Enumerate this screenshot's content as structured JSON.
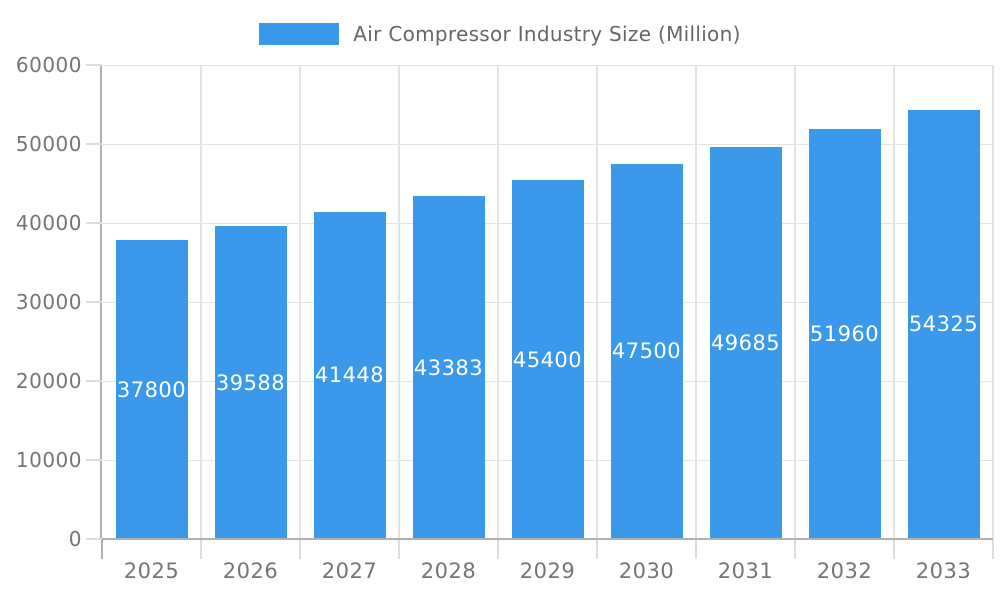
{
  "legend": {
    "label": "Air Compressor Industry Size (Million)"
  },
  "chart_data": {
    "type": "bar",
    "title": "Air Compressor Industry Size (Million)",
    "categories": [
      "2025",
      "2026",
      "2027",
      "2028",
      "2029",
      "2030",
      "2031",
      "2032",
      "2033"
    ],
    "values": [
      37800,
      39588,
      41448,
      43383,
      45400,
      47500,
      49685,
      51960,
      54325
    ],
    "xlabel": "",
    "ylabel": "",
    "ylim": [
      0,
      60000
    ],
    "yticks": [
      0,
      10000,
      20000,
      30000,
      40000,
      50000,
      60000
    ],
    "grid": true,
    "legend_position": "top",
    "value_labels": "inside-center",
    "colors": {
      "bar": "#3B99EC",
      "grid": "#e3e3e3",
      "axis_line": "#b0b0b0",
      "tick": "#dcdcdc",
      "axis_text": "#757575",
      "legend_text": "#666666",
      "value_text": "#ffffff",
      "background": "#ffffff"
    }
  }
}
